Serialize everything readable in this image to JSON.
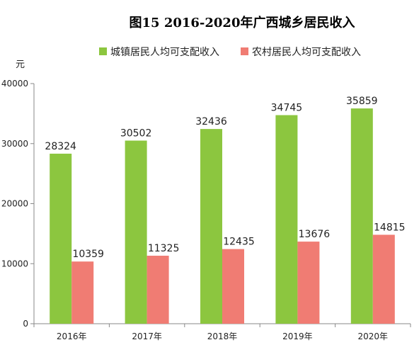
{
  "chart_data": {
    "type": "bar",
    "title": "图15  2016-2020年广西城乡居民收入",
    "ylabel": "元",
    "xlabel": "",
    "categories": [
      "2016年",
      "2017年",
      "2018年",
      "2019年",
      "2020年"
    ],
    "series": [
      {
        "name": "城镇居民人均可支配收入",
        "values": [
          28324,
          30502,
          32436,
          34745,
          35859
        ],
        "color": "#8CC63F"
      },
      {
        "name": "农村居民人均可支配收入",
        "values": [
          10359,
          11325,
          12435,
          13676,
          14815
        ],
        "color": "#F07C73"
      }
    ],
    "ylim": [
      0,
      40000
    ],
    "yticks": [
      0,
      10000,
      20000,
      30000,
      40000
    ],
    "grid": false,
    "legend_position": "top"
  }
}
